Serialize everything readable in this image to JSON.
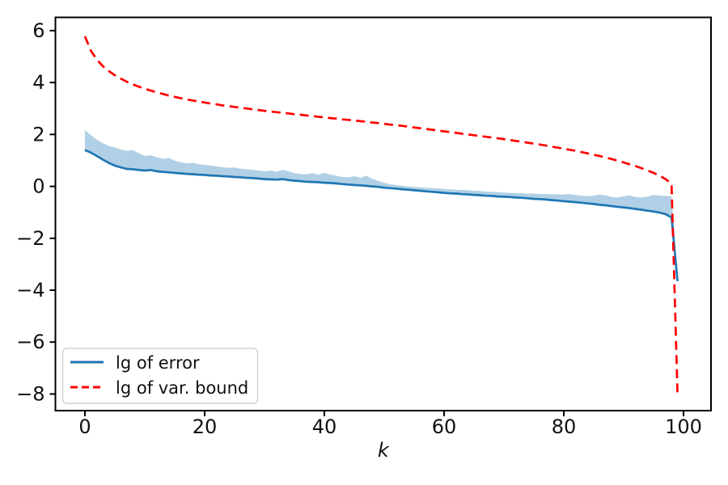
{
  "figure": {
    "background": "#ffffff",
    "text_color": "#111111",
    "spine_color": "#000000"
  },
  "legend": {
    "items": [
      {
        "label": "lg of error",
        "color": "#1f77b4",
        "style": "solid"
      },
      {
        "label": "lg of var. bound",
        "color": "#ff0000",
        "style": "dashed"
      }
    ],
    "position": "lower left",
    "border_color": "#d0d0d0",
    "background": "rgba(255,255,255,0.85)"
  },
  "chart_data": {
    "type": "line",
    "title": "",
    "xlabel": "k",
    "ylabel": "",
    "grid": false,
    "legend_position": "lower left",
    "xlim": [
      -4.93,
      104.6
    ],
    "ylim": [
      -8.64,
      6.51
    ],
    "xtick_values": [
      0,
      20,
      40,
      60,
      80,
      100
    ],
    "xtick_labels": [
      "0",
      "20",
      "40",
      "60",
      "80",
      "100"
    ],
    "ytick_values": [
      6,
      4,
      2,
      0,
      -2,
      -4,
      -6,
      -8
    ],
    "ytick_labels": [
      "6",
      "4",
      "2",
      "0",
      "−2",
      "−4",
      "−6",
      "−8"
    ],
    "x": [
      0,
      1,
      2,
      3,
      4,
      5,
      6,
      7,
      8,
      9,
      10,
      11,
      12,
      13,
      14,
      15,
      16,
      17,
      18,
      19,
      20,
      21,
      22,
      23,
      24,
      25,
      26,
      27,
      28,
      29,
      30,
      31,
      32,
      33,
      34,
      35,
      36,
      37,
      38,
      39,
      40,
      41,
      42,
      43,
      44,
      45,
      46,
      47,
      48,
      49,
      50,
      51,
      52,
      53,
      54,
      55,
      56,
      57,
      58,
      59,
      60,
      61,
      62,
      63,
      64,
      65,
      66,
      67,
      68,
      69,
      70,
      71,
      72,
      73,
      74,
      75,
      76,
      77,
      78,
      79,
      80,
      81,
      82,
      83,
      84,
      85,
      86,
      87,
      88,
      89,
      90,
      91,
      92,
      93,
      94,
      95,
      96,
      97,
      98,
      99
    ],
    "series": [
      {
        "name": "lg of error",
        "kind": "line",
        "color": "#1f77b4",
        "linestyle": "solid",
        "linewidth": 2.7,
        "values": [
          1.4,
          1.3,
          1.17,
          1.03,
          0.9,
          0.8,
          0.73,
          0.67,
          0.66,
          0.63,
          0.61,
          0.63,
          0.58,
          0.56,
          0.54,
          0.52,
          0.5,
          0.48,
          0.47,
          0.45,
          0.44,
          0.42,
          0.41,
          0.39,
          0.38,
          0.36,
          0.35,
          0.33,
          0.32,
          0.3,
          0.28,
          0.27,
          0.26,
          0.28,
          0.24,
          0.22,
          0.2,
          0.18,
          0.17,
          0.16,
          0.14,
          0.13,
          0.11,
          0.09,
          0.07,
          0.05,
          0.04,
          0.02,
          0.0,
          -0.02,
          -0.05,
          -0.07,
          -0.09,
          -0.11,
          -0.13,
          -0.15,
          -0.17,
          -0.19,
          -0.21,
          -0.23,
          -0.25,
          -0.27,
          -0.28,
          -0.3,
          -0.31,
          -0.33,
          -0.34,
          -0.36,
          -0.37,
          -0.39,
          -0.4,
          -0.41,
          -0.43,
          -0.44,
          -0.46,
          -0.48,
          -0.49,
          -0.51,
          -0.53,
          -0.55,
          -0.57,
          -0.59,
          -0.61,
          -0.63,
          -0.66,
          -0.68,
          -0.71,
          -0.73,
          -0.76,
          -0.79,
          -0.81,
          -0.84,
          -0.87,
          -0.9,
          -0.94,
          -0.97,
          -1.01,
          -1.07,
          -1.2,
          -3.65
        ]
      },
      {
        "name": "lg of var. bound",
        "kind": "line",
        "color": "#ff0000",
        "linestyle": "dashed",
        "linewidth": 2.7,
        "values": [
          5.78,
          5.22,
          4.88,
          4.63,
          4.44,
          4.28,
          4.15,
          4.03,
          3.93,
          3.84,
          3.76,
          3.69,
          3.62,
          3.56,
          3.5,
          3.45,
          3.4,
          3.35,
          3.31,
          3.27,
          3.23,
          3.19,
          3.16,
          3.12,
          3.09,
          3.06,
          3.03,
          3.0,
          2.97,
          2.94,
          2.91,
          2.88,
          2.86,
          2.83,
          2.81,
          2.78,
          2.76,
          2.73,
          2.71,
          2.68,
          2.66,
          2.63,
          2.61,
          2.58,
          2.56,
          2.54,
          2.51,
          2.49,
          2.46,
          2.44,
          2.41,
          2.38,
          2.36,
          2.33,
          2.3,
          2.27,
          2.24,
          2.21,
          2.18,
          2.15,
          2.12,
          2.09,
          2.06,
          2.03,
          2.0,
          1.97,
          1.94,
          1.91,
          1.88,
          1.85,
          1.82,
          1.79,
          1.75,
          1.72,
          1.68,
          1.65,
          1.61,
          1.57,
          1.53,
          1.49,
          1.45,
          1.41,
          1.37,
          1.32,
          1.27,
          1.22,
          1.17,
          1.11,
          1.05,
          0.99,
          0.92,
          0.85,
          0.78,
          0.7,
          0.61,
          0.52,
          0.41,
          0.28,
          0.1,
          -8.0
        ]
      },
      {
        "name": "error band (upper edge)",
        "kind": "band-upper",
        "color": "rgba(31,119,180,0.35)",
        "lower_equals_series": "lg of error",
        "values": [
          2.17,
          1.97,
          1.8,
          1.66,
          1.56,
          1.5,
          1.42,
          1.37,
          1.4,
          1.28,
          1.17,
          1.2,
          1.12,
          1.06,
          1.09,
          0.99,
          0.93,
          0.89,
          0.91,
          0.85,
          0.83,
          0.8,
          0.77,
          0.74,
          0.71,
          0.73,
          0.68,
          0.66,
          0.64,
          0.61,
          0.58,
          0.61,
          0.56,
          0.64,
          0.58,
          0.51,
          0.48,
          0.46,
          0.51,
          0.45,
          0.52,
          0.46,
          0.41,
          0.37,
          0.35,
          0.39,
          0.33,
          0.41,
          0.29,
          0.21,
          0.14,
          0.08,
          0.05,
          0.02,
          0.0,
          -0.02,
          -0.04,
          -0.05,
          -0.07,
          -0.08,
          -0.1,
          -0.11,
          -0.13,
          -0.14,
          -0.15,
          -0.17,
          -0.18,
          -0.2,
          -0.21,
          -0.22,
          -0.24,
          -0.25,
          -0.26,
          -0.27,
          -0.28,
          -0.28,
          -0.29,
          -0.3,
          -0.3,
          -0.31,
          -0.31,
          -0.3,
          -0.33,
          -0.36,
          -0.38,
          -0.36,
          -0.32,
          -0.35,
          -0.41,
          -0.43,
          -0.38,
          -0.35,
          -0.41,
          -0.43,
          -0.39,
          -0.33,
          -0.35,
          -0.37,
          -0.39,
          -3.45
        ]
      }
    ]
  }
}
